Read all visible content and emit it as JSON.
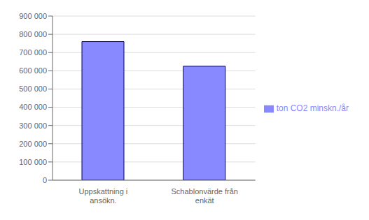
{
  "chart_data": {
    "type": "bar",
    "categories": [
      "Uppskattning i\nansökn.",
      "Schablonvärde från\nenkät"
    ],
    "series": [
      {
        "name": "ton CO2 minskn./år",
        "color": "#8888ff",
        "values": [
          760000,
          625000
        ]
      }
    ],
    "ylim": [
      0,
      900000
    ],
    "yticks": [
      0,
      {
        "value": 100000,
        "label": "100 000"
      },
      {
        "value": 200000,
        "label": "200 000"
      },
      {
        "value": 300000,
        "label": "300 000"
      },
      {
        "value": 400000,
        "label": "400 000"
      },
      {
        "value": 500000,
        "label": "500 000"
      },
      {
        "value": 600000,
        "label": "600 000"
      },
      {
        "value": 700000,
        "label": "700 000"
      },
      {
        "value": 800000,
        "label": "800 000"
      },
      {
        "value": 900000,
        "label": "900 000"
      }
    ],
    "grid": true,
    "legend": "right"
  }
}
